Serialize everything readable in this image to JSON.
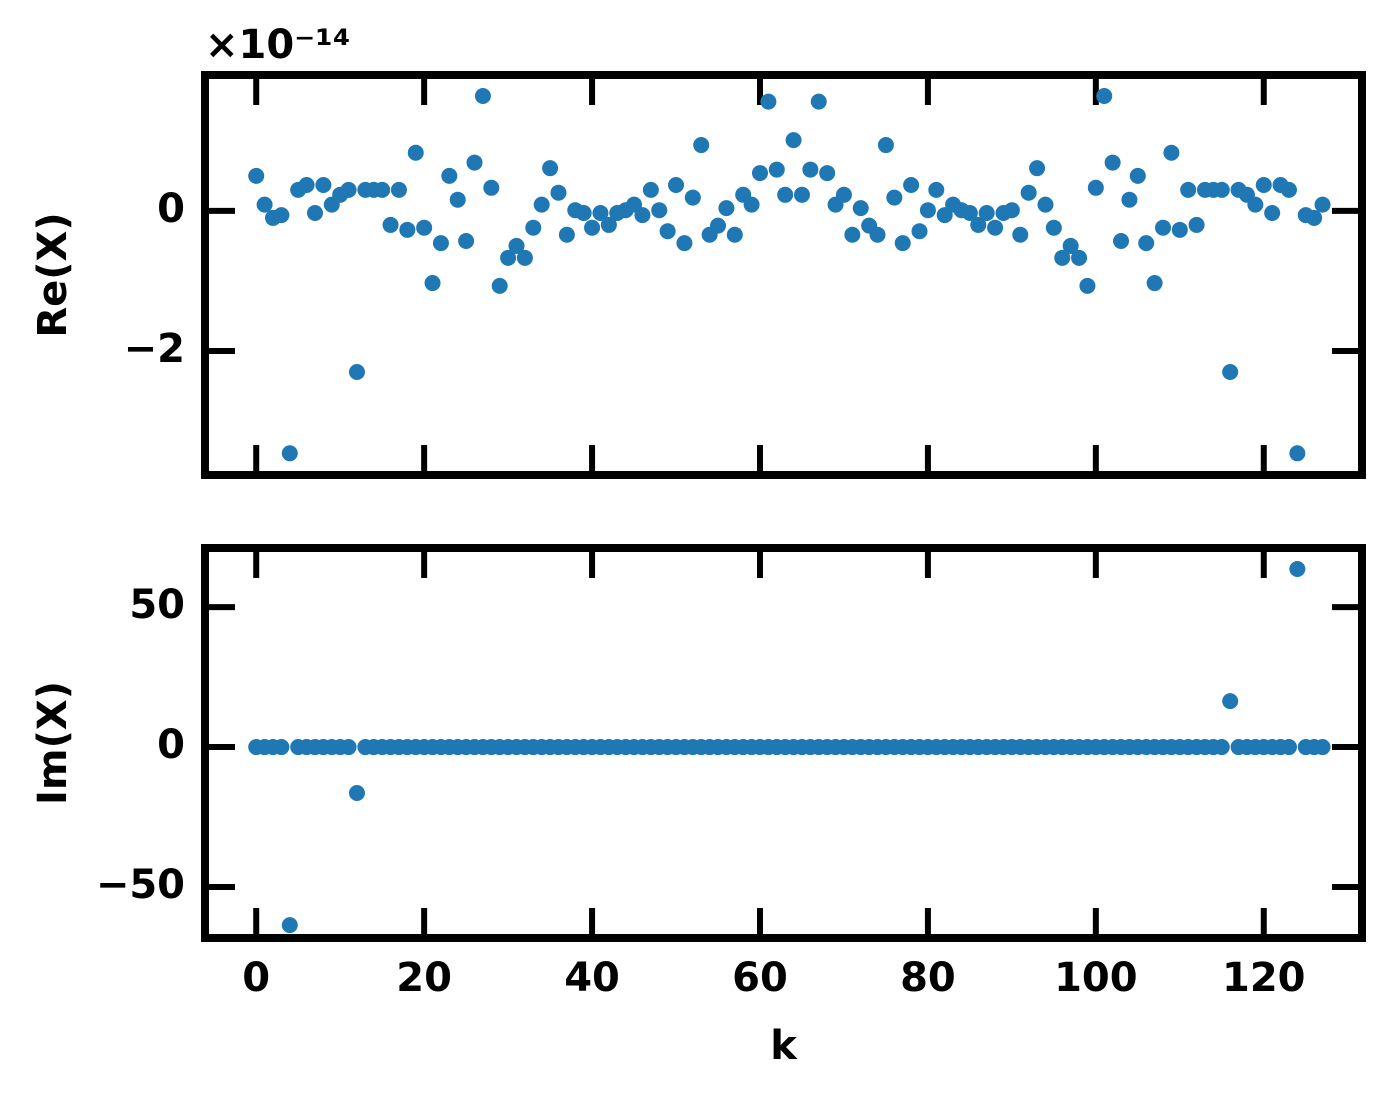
{
  "chart_data": [
    {
      "type": "scatter",
      "ylabel": "Re(X)",
      "offset_text": "×10⁻¹⁴",
      "color": "#1f77b4",
      "xlim": [
        -6.1,
        131.7
      ],
      "ylim": [
        -3.77,
        1.94
      ],
      "xticks": [
        0,
        20,
        40,
        60,
        80,
        100,
        120
      ],
      "xticklabels": false,
      "yticks": [
        {
          "value": -2,
          "label": "−2"
        },
        0
      ],
      "x": [
        0,
        1,
        2,
        3,
        4,
        5,
        6,
        7,
        8,
        9,
        10,
        11,
        12,
        13,
        14,
        15,
        16,
        17,
        18,
        19,
        20,
        21,
        22,
        23,
        24,
        25,
        26,
        27,
        28,
        29,
        30,
        31,
        32,
        33,
        34,
        35,
        36,
        37,
        38,
        39,
        40,
        41,
        42,
        43,
        44,
        45,
        46,
        47,
        48,
        49,
        50,
        51,
        52,
        53,
        54,
        55,
        56,
        57,
        58,
        59,
        60,
        61,
        62,
        63,
        64,
        65,
        66,
        67,
        68,
        69,
        70,
        71,
        72,
        73,
        74,
        75,
        76,
        77,
        78,
        79,
        80,
        81,
        82,
        83,
        84,
        85,
        86,
        87,
        88,
        89,
        90,
        91,
        92,
        93,
        94,
        95,
        96,
        97,
        98,
        99,
        100,
        101,
        102,
        103,
        104,
        105,
        106,
        107,
        108,
        109,
        110,
        111,
        112,
        113,
        114,
        115,
        116,
        117,
        118,
        119,
        120,
        121,
        122,
        123,
        124,
        125,
        126,
        127
      ],
      "values": [
        0.5,
        0.09,
        -0.1,
        -0.06,
        -3.46,
        0.3,
        0.37,
        -0.03,
        0.37,
        0.09,
        0.23,
        0.3,
        -2.3,
        0.3,
        0.3,
        0.3,
        -0.2,
        0.3,
        -0.27,
        0.83,
        -0.24,
        -1.03,
        -0.46,
        0.5,
        0.16,
        -0.43,
        0.69,
        1.64,
        0.33,
        -1.07,
        -0.67,
        -0.5,
        -0.67,
        -0.24,
        0.09,
        0.61,
        0.26,
        -0.34,
        0.01,
        -0.03,
        -0.24,
        -0.03,
        -0.2,
        -0.03,
        0.01,
        0.09,
        -0.06,
        0.3,
        0.01,
        -0.29,
        0.37,
        -0.46,
        0.19,
        0.94,
        -0.34,
        -0.21,
        0.04,
        -0.34,
        0.23,
        0.09,
        0.54,
        1.56,
        0.59,
        0.23,
        1.01,
        0.23,
        0.59,
        1.56,
        0.54,
        0.09,
        0.23,
        -0.34,
        0.04,
        -0.21,
        -0.34,
        0.94,
        0.19,
        -0.46,
        0.37,
        -0.29,
        0.01,
        0.3,
        -0.06,
        0.09,
        0.01,
        -0.03,
        -0.2,
        -0.03,
        -0.24,
        -0.03,
        0.01,
        -0.34,
        0.26,
        0.61,
        0.09,
        -0.24,
        -0.67,
        -0.5,
        -0.67,
        -1.07,
        0.33,
        1.64,
        0.69,
        -0.43,
        0.16,
        0.5,
        -0.46,
        -1.03,
        -0.24,
        0.83,
        -0.27,
        0.3,
        -0.2,
        0.3,
        0.3,
        0.3,
        -2.3,
        0.3,
        0.23,
        0.09,
        0.37,
        -0.03,
        0.37,
        0.3,
        -3.46,
        -0.06,
        -0.1,
        0.09
      ]
    },
    {
      "type": "scatter",
      "ylabel": "Im(X)",
      "xlabel": "k",
      "color": "#1f77b4",
      "xlim": [
        -6.1,
        131.7
      ],
      "ylim": [
        -68.2,
        71.1
      ],
      "xticks": [
        0,
        20,
        40,
        60,
        80,
        100,
        120
      ],
      "xticklabels": true,
      "yticks": [
        {
          "value": -50,
          "label": "−50"
        },
        0,
        50
      ],
      "x": [
        0,
        1,
        2,
        3,
        4,
        5,
        6,
        7,
        8,
        9,
        10,
        11,
        12,
        13,
        14,
        15,
        16,
        17,
        18,
        19,
        20,
        21,
        22,
        23,
        24,
        25,
        26,
        27,
        28,
        29,
        30,
        31,
        32,
        33,
        34,
        35,
        36,
        37,
        38,
        39,
        40,
        41,
        42,
        43,
        44,
        45,
        46,
        47,
        48,
        49,
        50,
        51,
        52,
        53,
        54,
        55,
        56,
        57,
        58,
        59,
        60,
        61,
        62,
        63,
        64,
        65,
        66,
        67,
        68,
        69,
        70,
        71,
        72,
        73,
        74,
        75,
        76,
        77,
        78,
        79,
        80,
        81,
        82,
        83,
        84,
        85,
        86,
        87,
        88,
        89,
        90,
        91,
        92,
        93,
        94,
        95,
        96,
        97,
        98,
        99,
        100,
        101,
        102,
        103,
        104,
        105,
        106,
        107,
        108,
        109,
        110,
        111,
        112,
        113,
        114,
        115,
        116,
        117,
        118,
        119,
        120,
        121,
        122,
        123,
        124,
        125,
        126,
        127
      ],
      "values": [
        0,
        0,
        0,
        0,
        -63.6,
        0,
        0,
        0,
        0,
        0,
        0,
        0,
        -16.4,
        0,
        0,
        0,
        0,
        0,
        0,
        0,
        0,
        0,
        0,
        0,
        0,
        0,
        0,
        0,
        0,
        0,
        0,
        0,
        0,
        0,
        0,
        0,
        0,
        0,
        0,
        0,
        0,
        0,
        0,
        0,
        0,
        0,
        0,
        0,
        0,
        0,
        0,
        0,
        0,
        0,
        0,
        0,
        0,
        0,
        0,
        0,
        0,
        0,
        0,
        0,
        0,
        0,
        0,
        0,
        0,
        0,
        0,
        0,
        0,
        0,
        0,
        0,
        0,
        0,
        0,
        0,
        0,
        0,
        0,
        0,
        0,
        0,
        0,
        0,
        0,
        0,
        0,
        0,
        0,
        0,
        0,
        0,
        0,
        0,
        0,
        0,
        0,
        0,
        0,
        0,
        0,
        0,
        0,
        0,
        0,
        0,
        0,
        0,
        0,
        0,
        0,
        0,
        16.4,
        0,
        0,
        0,
        0,
        0,
        0,
        0,
        63.6,
        0,
        0,
        0
      ]
    }
  ]
}
